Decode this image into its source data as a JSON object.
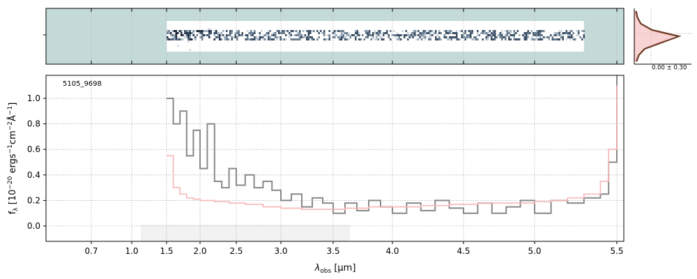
{
  "chart_data": [
    {
      "type": "heatmap",
      "panel": "2d-spectrum",
      "background_color": "#c4dad9",
      "colormap": "bone_r",
      "x_range": [
        0.6,
        5.3
      ],
      "trace_x_range": [
        1.5,
        5.3
      ]
    },
    {
      "type": "line",
      "panel": "spatial-profile",
      "label": "0.00 ± 0.30",
      "profile_color": "#6b3a22",
      "model_color": "#f4b8b8",
      "profile": [
        0.02,
        0.05,
        0.12,
        0.35,
        0.9,
        0.55,
        0.2,
        0.08,
        0.03
      ]
    },
    {
      "type": "line",
      "panel": "1d-spectrum",
      "annotation": "5105_9698",
      "xlabel": "λobs [μm]",
      "xlabel_main": "λ",
      "xlabel_sub": "obs",
      "xlabel_unit": " [μm]",
      "ylabel": "fλ [10−20 ergs−1cm−2Å−1]",
      "ylabel_parts": {
        "f": "f",
        "lam": "λ",
        "a": " [10",
        "e1": "−20",
        "b": " ergs",
        "e2": "−1",
        "c": "cm",
        "e3": "−2",
        "d": "Å",
        "e4": "−1",
        "e": "]"
      },
      "xlim": [
        0.6,
        5.53
      ],
      "ylim": [
        -0.12,
        1.18
      ],
      "x_scale": "nonlinear (spectral resolution)",
      "x_ticks": [
        0.7,
        1.0,
        1.5,
        2.0,
        2.5,
        3.0,
        3.5,
        4.0,
        4.5,
        5.0,
        5.5
      ],
      "x_tick_labels": [
        "0.7",
        "1.0",
        "1.5",
        "2.0",
        "2.5",
        "3.0",
        "3.5",
        "4.0",
        "4.5",
        "5.0",
        "5.5"
      ],
      "y_ticks": [
        0.0,
        0.2,
        0.4,
        0.6,
        0.8,
        1.0
      ],
      "y_tick_labels": [
        "0.0",
        "0.2",
        "0.4",
        "0.6",
        "0.8",
        "1.0"
      ],
      "grid": true,
      "series": [
        {
          "role": "observed spectrum",
          "color": "#888888",
          "x": [
            1.5,
            1.6,
            1.7,
            1.8,
            1.9,
            2.0,
            2.1,
            2.2,
            2.3,
            2.4,
            2.5,
            2.6,
            2.7,
            2.8,
            2.9,
            3.0,
            3.1,
            3.2,
            3.3,
            3.4,
            3.5,
            3.6,
            3.7,
            3.8,
            3.9,
            4.0,
            4.1,
            4.2,
            4.3,
            4.4,
            4.5,
            4.6,
            4.7,
            4.8,
            4.9,
            5.0,
            5.1,
            5.2,
            5.3,
            5.4,
            5.45,
            5.5
          ],
          "y": [
            1.0,
            0.8,
            0.9,
            0.55,
            0.75,
            0.45,
            0.8,
            0.35,
            0.3,
            0.45,
            0.32,
            0.4,
            0.3,
            0.35,
            0.28,
            0.2,
            0.25,
            0.15,
            0.22,
            0.18,
            0.1,
            0.18,
            0.12,
            0.2,
            0.15,
            0.1,
            0.18,
            0.12,
            0.2,
            0.14,
            0.1,
            0.18,
            0.1,
            0.15,
            0.2,
            0.1,
            0.2,
            0.18,
            0.22,
            0.25,
            0.5,
            1.2
          ]
        },
        {
          "role": "model",
          "color": "#f7b5b5",
          "x": [
            1.5,
            1.6,
            1.7,
            1.8,
            1.9,
            2.0,
            2.2,
            2.4,
            2.6,
            2.8,
            3.0,
            3.2,
            3.4,
            3.6,
            3.8,
            4.0,
            4.2,
            4.4,
            4.6,
            4.8,
            5.0,
            5.1,
            5.2,
            5.3,
            5.4,
            5.45,
            5.5
          ],
          "y": [
            0.55,
            0.3,
            0.25,
            0.22,
            0.21,
            0.2,
            0.19,
            0.18,
            0.17,
            0.15,
            0.14,
            0.13,
            0.13,
            0.14,
            0.15,
            0.15,
            0.16,
            0.17,
            0.18,
            0.18,
            0.19,
            0.2,
            0.22,
            0.25,
            0.35,
            0.6,
            1.1
          ]
        }
      ]
    }
  ]
}
